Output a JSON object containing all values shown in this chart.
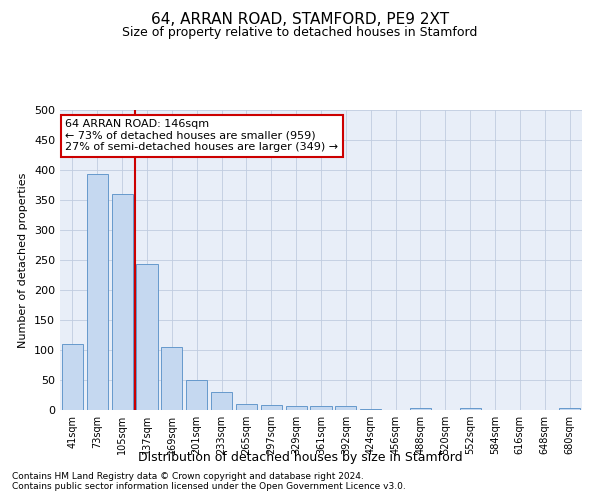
{
  "title1": "64, ARRAN ROAD, STAMFORD, PE9 2XT",
  "title2": "Size of property relative to detached houses in Stamford",
  "xlabel": "Distribution of detached houses by size in Stamford",
  "ylabel": "Number of detached properties",
  "bar_labels": [
    "41sqm",
    "73sqm",
    "105sqm",
    "137sqm",
    "169sqm",
    "201sqm",
    "233sqm",
    "265sqm",
    "297sqm",
    "329sqm",
    "361sqm",
    "392sqm",
    "424sqm",
    "456sqm",
    "488sqm",
    "520sqm",
    "552sqm",
    "584sqm",
    "616sqm",
    "648sqm",
    "680sqm"
  ],
  "bar_values": [
    110,
    393,
    360,
    243,
    105,
    50,
    30,
    10,
    9,
    6,
    6,
    7,
    2,
    0,
    3,
    0,
    4,
    0,
    0,
    0,
    4
  ],
  "bar_color": "#c5d8f0",
  "bar_edge_color": "#6699cc",
  "vline_x": 2.5,
  "vline_color": "#cc0000",
  "ylim": [
    0,
    500
  ],
  "yticks": [
    0,
    50,
    100,
    150,
    200,
    250,
    300,
    350,
    400,
    450,
    500
  ],
  "annotation_text": "64 ARRAN ROAD: 146sqm\n← 73% of detached houses are smaller (959)\n27% of semi-detached houses are larger (349) →",
  "annotation_box_color": "#ffffff",
  "annotation_box_edge": "#cc0000",
  "footnote1": "Contains HM Land Registry data © Crown copyright and database right 2024.",
  "footnote2": "Contains public sector information licensed under the Open Government Licence v3.0.",
  "bg_color": "#e8eef8",
  "grid_color": "#c0cce0",
  "title_fontsize": 11,
  "subtitle_fontsize": 9,
  "ylabel_fontsize": 8,
  "xlabel_fontsize": 9,
  "tick_fontsize": 8,
  "annot_fontsize": 8,
  "footnote_fontsize": 6.5
}
